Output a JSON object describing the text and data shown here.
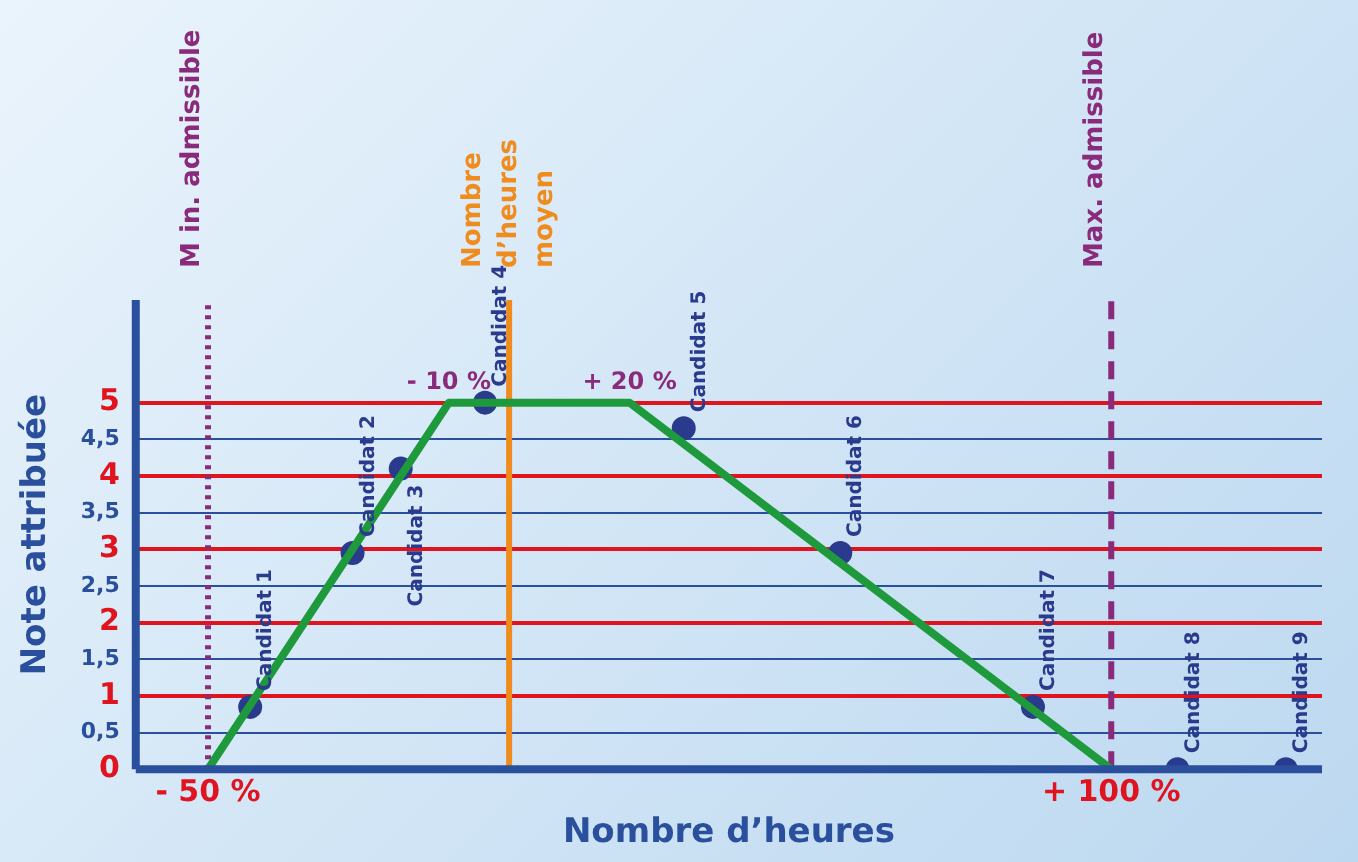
{
  "chart_data": {
    "type": "line",
    "xlabel": "Nombre d’heures",
    "ylabel": "Note attribuée",
    "xlim": [
      -62,
      135
    ],
    "xticks": [
      {
        "value": -50,
        "label": "- 50 %"
      },
      {
        "value": 100,
        "label": "+ 100 %"
      }
    ],
    "ylim": [
      0,
      6.4
    ],
    "yticks": [
      {
        "value": 0,
        "label": "0"
      },
      {
        "value": 0.5,
        "label": "0,5"
      },
      {
        "value": 1,
        "label": "1"
      },
      {
        "value": 1.5,
        "label": "1,5"
      },
      {
        "value": 2,
        "label": "2"
      },
      {
        "value": 2.5,
        "label": "2,5"
      },
      {
        "value": 3,
        "label": "3"
      },
      {
        "value": 3.5,
        "label": "3,5"
      },
      {
        "value": 4,
        "label": "4"
      },
      {
        "value": 4.5,
        "label": "4,5"
      },
      {
        "value": 5,
        "label": "5"
      }
    ],
    "grid": "y",
    "legend": false,
    "series": [
      {
        "color": "#1e9a3c",
        "x": [
          -50,
          -10,
          20,
          100
        ],
        "values": [
          0,
          5,
          5,
          0
        ],
        "marker": "none"
      },
      {
        "type": "scatter",
        "color": "#2a3a8c",
        "x": [
          -43,
          -26,
          -18,
          -4,
          29,
          55,
          87,
          111,
          129
        ],
        "values": [
          0.85,
          2.95,
          4.1,
          5,
          4.65,
          2.95,
          0.85,
          0,
          0
        ],
        "marker": "circle"
      }
    ],
    "ref_lines": [
      {
        "axis": "x",
        "value": -50,
        "label": "M in. admissible",
        "color": "#8a2a7a",
        "line_style": "dotted"
      },
      {
        "axis": "x",
        "value": 0,
        "label": "Nombre\nd’heures\nmoyen",
        "color": "#f08c1e",
        "line_style": "solid"
      },
      {
        "axis": "x",
        "value": 100,
        "label": "Max. admissible",
        "color": "#8a2a7a",
        "line_style": "dashed"
      }
    ],
    "annotations": [
      {
        "text": "Candidat 1",
        "x": -43,
        "y": 0.85
      },
      {
        "text": "Candidat 2",
        "x": -26,
        "y": 2.95
      },
      {
        "text": "Candidat 3",
        "x": -18,
        "y": 4.1
      },
      {
        "text": "Candidat 4",
        "x": -4,
        "y": 5
      },
      {
        "text": "Candidat 5",
        "x": 29,
        "y": 4.65
      },
      {
        "text": "Candidat 6",
        "x": 55,
        "y": 2.95
      },
      {
        "text": "Candidat 7",
        "x": 87,
        "y": 0.85
      },
      {
        "text": "Candidat 8",
        "x": 111,
        "y": 0
      },
      {
        "text": "Candidat 9",
        "x": 129,
        "y": 0
      },
      {
        "text": "- 10 %",
        "x": -10,
        "y": 5
      },
      {
        "text": "+ 20 %",
        "x": 20,
        "y": 5
      }
    ]
  }
}
